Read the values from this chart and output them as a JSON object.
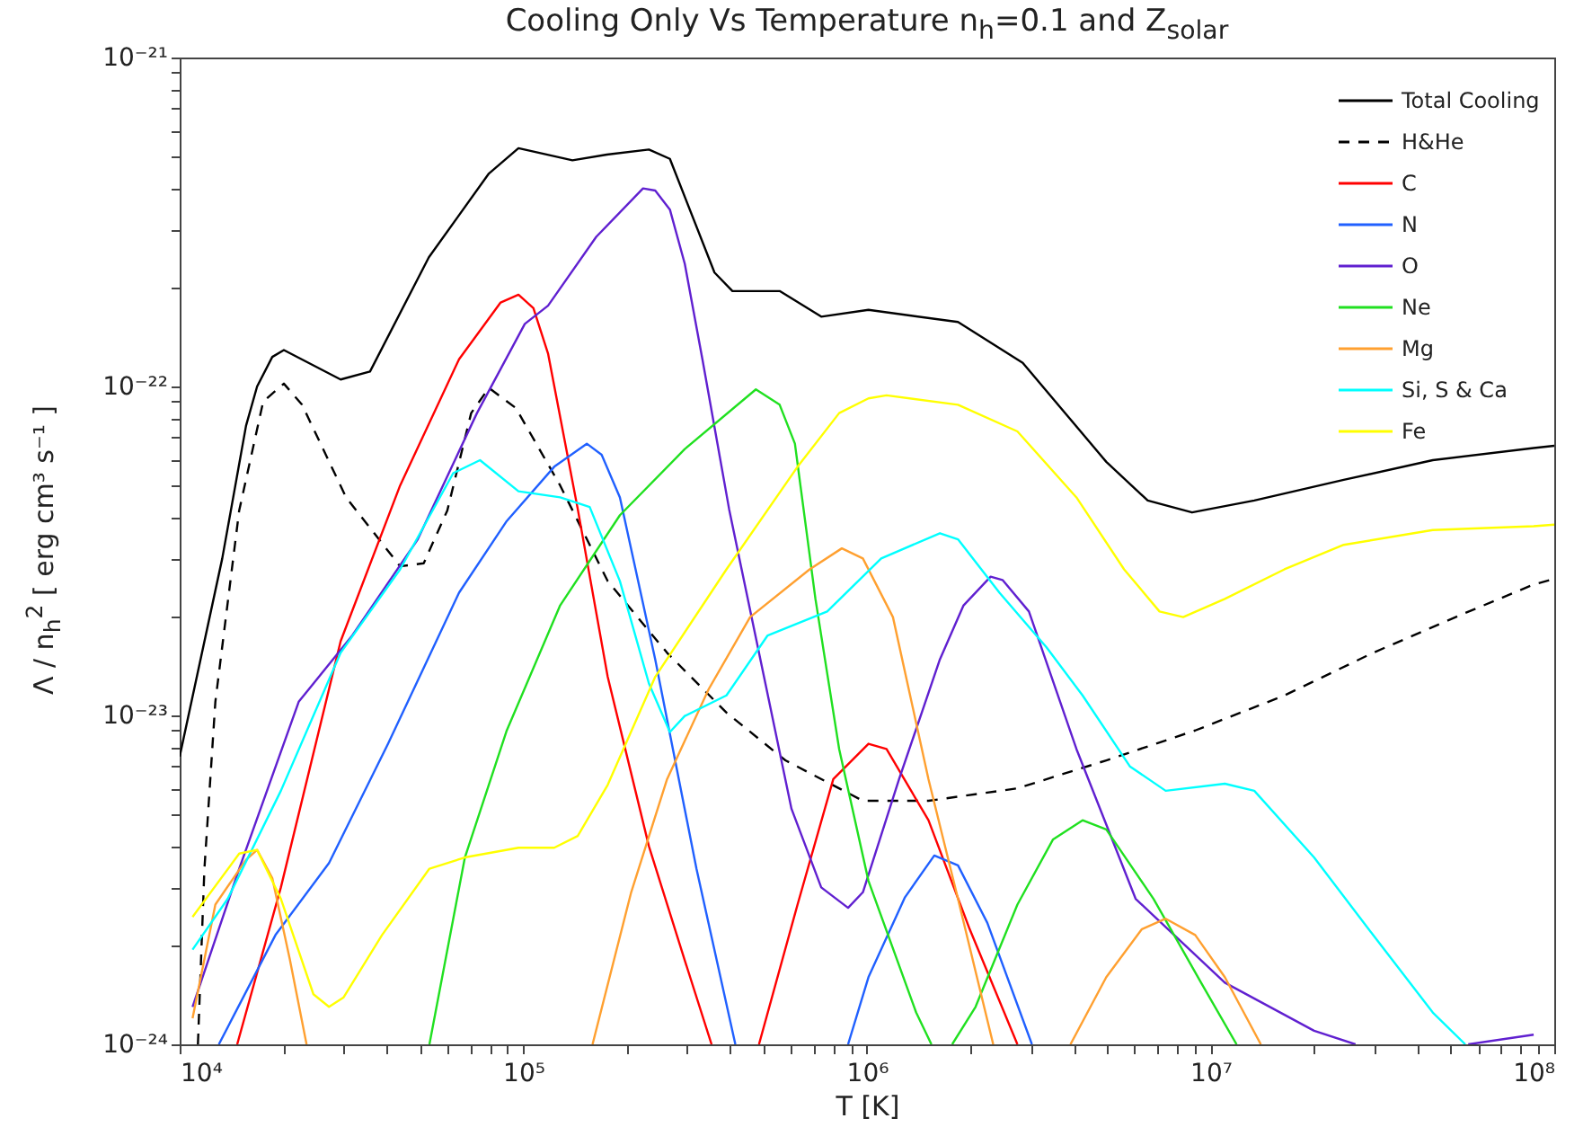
{
  "chart_data": {
    "type": "line",
    "title": "Cooling Only Vs Temperature n$_{h}$=0.1 and Z$_{solar}$",
    "xlabel": "T [K]",
    "ylabel": "Λ / n$_{h}$$^{2}$ [ erg cm³ s⁻¹ ]",
    "log": "xy",
    "legend": "top right",
    "xlim": [
      10000,
      100000000
    ],
    "ylim": [
      1e-24,
      1e-21
    ],
    "xticks": [
      {
        "value": 10000,
        "label": "10⁴"
      },
      {
        "value": 20000,
        "label": null
      },
      {
        "value": 30000,
        "label": null
      },
      {
        "value": 40000,
        "label": null
      },
      {
        "value": 50000,
        "label": null
      },
      {
        "value": 60000,
        "label": null
      },
      {
        "value": 70000,
        "label": null
      },
      {
        "value": 80000,
        "label": null
      },
      {
        "value": 90000,
        "label": null
      },
      {
        "value": 100000,
        "label": "10⁵"
      },
      {
        "value": 200000,
        "label": null
      },
      {
        "value": 300000,
        "label": null
      },
      {
        "value": 400000,
        "label": null
      },
      {
        "value": 500000,
        "label": null
      },
      {
        "value": 600000,
        "label": null
      },
      {
        "value": 700000,
        "label": null
      },
      {
        "value": 800000,
        "label": null
      },
      {
        "value": 900000,
        "label": null
      },
      {
        "value": 1000000,
        "label": "10⁶"
      },
      {
        "value": 2000000,
        "label": null
      },
      {
        "value": 3000000,
        "label": null
      },
      {
        "value": 4000000,
        "label": null
      },
      {
        "value": 5000000,
        "label": null
      },
      {
        "value": 6000000,
        "label": null
      },
      {
        "value": 7000000,
        "label": null
      },
      {
        "value": 8000000,
        "label": null
      },
      {
        "value": 9000000,
        "label": null
      },
      {
        "value": 10000000,
        "label": "10⁷"
      },
      {
        "value": 20000000,
        "label": null
      },
      {
        "value": 30000000,
        "label": null
      },
      {
        "value": 40000000,
        "label": null
      },
      {
        "value": 50000000,
        "label": null
      },
      {
        "value": 60000000,
        "label": null
      },
      {
        "value": 70000000,
        "label": null
      },
      {
        "value": 80000000,
        "label": null
      },
      {
        "value": 90000000,
        "label": null
      },
      {
        "value": 100000000,
        "label": "10⁸"
      }
    ],
    "yticks": [
      {
        "value": 1e-24,
        "label": "10⁻²⁴"
      },
      {
        "value": 2e-24,
        "label": null
      },
      {
        "value": 3e-24,
        "label": null
      },
      {
        "value": 4e-24,
        "label": null
      },
      {
        "value": 5e-24,
        "label": null
      },
      {
        "value": 6e-24,
        "label": null
      },
      {
        "value": 7e-24,
        "label": null
      },
      {
        "value": 8e-24,
        "label": null
      },
      {
        "value": 9e-24,
        "label": null
      },
      {
        "value": 1e-23,
        "label": "10⁻²³"
      },
      {
        "value": 2e-23,
        "label": null
      },
      {
        "value": 3e-23,
        "label": null
      },
      {
        "value": 4e-23,
        "label": null
      },
      {
        "value": 5e-23,
        "label": null
      },
      {
        "value": 6e-23,
        "label": null
      },
      {
        "value": 7e-23,
        "label": null
      },
      {
        "value": 8e-23,
        "label": null
      },
      {
        "value": 9e-23,
        "label": null
      },
      {
        "value": 1e-22,
        "label": "10⁻²²"
      },
      {
        "value": 2e-22,
        "label": null
      },
      {
        "value": 3e-22,
        "label": null
      },
      {
        "value": 4e-22,
        "label": null
      },
      {
        "value": 5e-22,
        "label": null
      },
      {
        "value": 6e-22,
        "label": null
      },
      {
        "value": 7e-22,
        "label": null
      },
      {
        "value": 8e-22,
        "label": null
      },
      {
        "value": 9e-22,
        "label": null
      },
      {
        "value": 1e-21,
        "label": "10⁻²¹"
      }
    ],
    "series": [
      {
        "name": "Total Cooling",
        "color": "#000000",
        "line_style": "solid",
        "x": [
          10000,
          13300,
          15600,
          16800,
          18600,
          20100,
          29400,
          35800,
          53100,
          79400,
          96800,
          139000,
          175000,
          232000,
          267000,
          360000,
          406000,
          557000,
          736000,
          1010000,
          1840000,
          2840000,
          4970000,
          6560000,
          8830000,
          13400000,
          24400000,
          44300000,
          87100000,
          100000000
        ],
        "values": [
          7.5e-24,
          3e-23,
          7.6e-23,
          1e-22,
          1.23e-22,
          1.29e-22,
          1.05e-22,
          1.11e-22,
          2.47e-22,
          4.44e-22,
          5.3e-22,
          4.87e-22,
          5.07e-22,
          5.25e-22,
          4.92e-22,
          2.22e-22,
          1.95e-22,
          1.95e-22,
          1.63e-22,
          1.71e-22,
          1.57e-22,
          1.18e-22,
          5.9e-23,
          4.5e-23,
          4.14e-23,
          4.5e-23,
          5.2e-23,
          5.97e-23,
          6.5e-23,
          6.6e-23
        ]
      },
      {
        "name": "H&He",
        "color": "#000000",
        "line_style": "dashed",
        "x": [
          11300,
          11800,
          12700,
          14900,
          17500,
          20100,
          22700,
          30500,
          43800,
          51300,
          60100,
          70500,
          79400,
          95100,
          128000,
          176000,
          262000,
          390000,
          579000,
          973000,
          1510000,
          2740000,
          4970000,
          9020000,
          16400000,
          29700000,
          54000000,
          87100000,
          100000000
        ],
        "values": [
          1e-24,
          3.4e-24,
          1.1e-23,
          4.2e-23,
          9e-23,
          1.02e-22,
          8.8e-23,
          4.6e-23,
          2.84e-23,
          2.9e-23,
          4.2e-23,
          8.3e-23,
          9.9e-23,
          8.6e-23,
          5e-23,
          2.56e-23,
          1.55e-23,
          1.02e-23,
          7.3e-24,
          5.5e-24,
          5.5e-24,
          6e-24,
          7.3e-24,
          9e-24,
          1.15e-23,
          1.55e-23,
          2.03e-23,
          2.5e-23,
          2.6e-23
        ]
      },
      {
        "name": "C",
        "color": "#ff0000",
        "line_style": "solid",
        "x": [
          14700,
          19700,
          29400,
          43800,
          65000,
          85900,
          96800,
          107000,
          118000,
          144000,
          176000,
          232000,
          295000,
          353000,
          420000,
          485000,
          628000,
          798000,
          1010000,
          1140000,
          1510000,
          1990000,
          2740000
        ],
        "values": [
          1e-24,
          3e-24,
          1.68e-23,
          5e-23,
          1.21e-22,
          1.8e-22,
          1.9e-22,
          1.73e-22,
          1.26e-22,
          4.24e-23,
          1.31e-23,
          4e-24,
          1.8e-24,
          1e-24,
          null,
          1e-24,
          2.66e-24,
          6.4e-24,
          8.2e-24,
          7.9e-24,
          4.8e-24,
          2.24e-24,
          1e-24
        ]
      },
      {
        "name": "N",
        "color": "#2060ff",
        "line_style": "solid",
        "x": [
          13000,
          19000,
          27200,
          40400,
          65000,
          89500,
          123000,
          153000,
          169000,
          191000,
          242000,
          319000,
          414000,
          600000,
          881000,
          1010000,
          1290000,
          1570000,
          1840000,
          2240000,
          3020000
        ],
        "values": [
          1e-24,
          2.15e-24,
          3.56e-24,
          8.2e-24,
          2.36e-23,
          3.9e-23,
          5.7e-23,
          6.7e-23,
          6.2e-23,
          4.6e-23,
          1.48e-23,
          3.42e-24,
          1e-24,
          null,
          1e-24,
          1.6e-24,
          2.8e-24,
          3.75e-24,
          3.5e-24,
          2.34e-24,
          1e-24
        ]
      },
      {
        "name": "O",
        "color": "#6020d0",
        "line_style": "solid",
        "x": [
          10900,
          14900,
          22200,
          31800,
          49300,
          73300,
          101000,
          118000,
          163000,
          223000,
          242000,
          267000,
          295000,
          332000,
          397000,
          603000,
          736000,
          881000,
          973000,
          1240000,
          1630000,
          1910000,
          2290000,
          2480000,
          2960000,
          4070000,
          6050000,
          11000000,
          20000000,
          26400000,
          40000000,
          56200000,
          87100000
        ],
        "values": [
          1.3e-24,
          3.42e-24,
          1.1e-23,
          1.75e-23,
          3.43e-23,
          8.3e-23,
          1.55e-22,
          1.76e-22,
          2.85e-22,
          4e-22,
          3.94e-22,
          3.45e-22,
          2.36e-22,
          1.21e-22,
          4.24e-23,
          5.2e-24,
          3e-24,
          2.6e-24,
          2.9e-24,
          6.4e-24,
          1.48e-23,
          2.16e-23,
          2.64e-23,
          2.58e-23,
          2.07e-23,
          7.9e-24,
          2.77e-24,
          1.54e-24,
          1.1e-24,
          1e-24,
          null,
          1e-24,
          1.07e-24
        ]
      },
      {
        "name": "Ne",
        "color": "#20e020",
        "line_style": "solid",
        "x": [
          53300,
          67600,
          89500,
          128000,
          191000,
          295000,
          475000,
          557000,
          617000,
          708000,
          830000,
          1010000,
          1390000,
          1540000,
          1650000,
          1770000,
          2070000,
          2740000,
          3480000,
          4240000,
          4970000,
          6820000,
          9380000,
          11900000
        ],
        "values": [
          1e-24,
          3.7e-24,
          9e-24,
          2.16e-23,
          4.06e-23,
          6.45e-23,
          9.8e-23,
          8.8e-23,
          6.7e-23,
          2.26e-23,
          7.9e-24,
          3.14e-24,
          1.25e-24,
          1e-24,
          null,
          1e-24,
          1.3e-24,
          2.66e-24,
          4.2e-24,
          4.8e-24,
          4.5e-24,
          2.77e-24,
          1.54e-24,
          1e-24
        ]
      },
      {
        "name": "Mg",
        "color": "#ffa030",
        "line_style": "solid",
        "x": [
          10900,
          12700,
          15600,
          16800,
          18600,
          20900,
          23400,
          60000,
          159000,
          206000,
          262000,
          346000,
          457000,
          681000,
          845000,
          973000,
          1190000,
          1510000,
          1840000,
          2330000,
          3000000,
          3910000,
          4970000,
          6310000,
          7400000,
          9020000,
          11000000,
          14000000
        ],
        "values": [
          1.2e-24,
          2.66e-24,
          3.64e-24,
          3.9e-24,
          3.2e-24,
          1.82e-24,
          1e-24,
          null,
          1e-24,
          2.9e-24,
          6.4e-24,
          1.2e-23,
          1.99e-23,
          2.78e-23,
          3.22e-23,
          3e-23,
          1.99e-23,
          6.4e-24,
          2.77e-24,
          1e-24,
          null,
          1e-24,
          1.6e-24,
          2.24e-24,
          2.41e-24,
          2.15e-24,
          1.6e-24,
          1e-24
        ]
      },
      {
        "name": "Si, S & Ca",
        "color": "#00ffff",
        "line_style": "solid",
        "x": [
          10900,
          13800,
          19700,
          29400,
          43800,
          62500,
          74800,
          96800,
          128000,
          156000,
          191000,
          232000,
          267000,
          295000,
          390000,
          514000,
          766000,
          1100000,
          1630000,
          1840000,
          2430000,
          3330000,
          4240000,
          5820000,
          7400000,
          11000000,
          13400000,
          20000000,
          29700000,
          44300000,
          55100000
        ],
        "values": [
          1.94e-24,
          2.77e-24,
          5.9e-24,
          1.55e-23,
          2.78e-23,
          5.45e-23,
          5.97e-23,
          4.8e-23,
          4.6e-23,
          4.3e-23,
          2.56e-23,
          1.25e-23,
          8.9e-24,
          9.96e-24,
          1.15e-23,
          1.75e-23,
          2.07e-23,
          3e-23,
          3.58e-23,
          3.43e-23,
          2.36e-23,
          1.61e-23,
          1.15e-23,
          7e-24,
          5.9e-24,
          6.2e-24,
          5.9e-24,
          3.7e-24,
          2.15e-24,
          1.25e-24,
          1e-24
        ]
      },
      {
        "name": "Fe",
        "color": "#ffff00",
        "line_style": "solid",
        "x": [
          10900,
          14900,
          16800,
          19700,
          24500,
          27200,
          30000,
          38800,
          53300,
          67600,
          96800,
          123000,
          144000,
          176000,
          242000,
          390000,
          628000,
          830000,
          1010000,
          1140000,
          1840000,
          2740000,
          4070000,
          5600000,
          7100000,
          8320000,
          11000000,
          16400000,
          24400000,
          44300000,
          87100000,
          100000000
        ],
        "values": [
          2.44e-24,
          3.8e-24,
          3.9e-24,
          2.77e-24,
          1.42e-24,
          1.3e-24,
          1.39e-24,
          2.15e-24,
          3.42e-24,
          3.7e-24,
          3.96e-24,
          3.96e-24,
          4.3e-24,
          6.15e-24,
          1.31e-23,
          2.78e-23,
          5.7e-23,
          8.3e-23,
          9.2e-23,
          9.4e-23,
          8.8e-23,
          7.3e-23,
          4.6e-23,
          2.78e-23,
          2.07e-23,
          1.99e-23,
          2.26e-23,
          2.78e-23,
          3.3e-23,
          3.66e-23,
          3.76e-23,
          3.8e-23
        ]
      }
    ]
  }
}
